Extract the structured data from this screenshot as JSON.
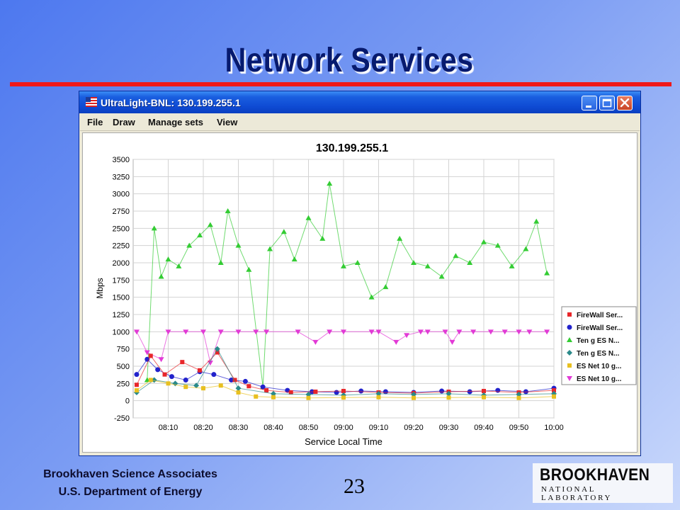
{
  "slide": {
    "title": "Network Services",
    "footer_org_line1": "Brookhaven Science Associates",
    "footer_org_line2": "U.S. Department of Energy",
    "page_number": "23",
    "logo_main": "BROOKHAVEN",
    "logo_sub": "NATIONAL LABORATORY",
    "rule_color": "#f01818"
  },
  "window": {
    "title": "UltraLight-BNL: 130.199.255.1",
    "app_icon": "flag-icon",
    "buttons": [
      "minimize-icon",
      "maximize-icon",
      "close-icon"
    ]
  },
  "menu": [
    "File",
    "Draw",
    "Manage sets",
    "View"
  ],
  "chart_data": {
    "type": "scatter",
    "title": "130.199.255.1",
    "xlabel": "Service Local Time",
    "ylabel": "Mbps",
    "ylim": [
      -250,
      3500
    ],
    "yticks": [
      "3500",
      "3250",
      "3000",
      "2750",
      "2500",
      "2250",
      "2000",
      "1750",
      "1500",
      "1250",
      "1000",
      "750",
      "500",
      "250",
      "0",
      "-250"
    ],
    "xlim": [
      "08:00",
      "10:00"
    ],
    "xticks": [
      "08:10",
      "08:20",
      "08:30",
      "08:40",
      "08:50",
      "09:00",
      "09:10",
      "09:20",
      "09:30",
      "09:40",
      "09:50",
      "10:00"
    ],
    "grid": true,
    "legend_position": "right",
    "legend": [
      "FireWall Ser...",
      "FireWall Ser...",
      "Ten g ES N...",
      "Ten g ES N...",
      "ES Net 10 g...",
      "ES Net 10 g..."
    ],
    "series": [
      {
        "name": "FireWall Ser...",
        "color": "#e8262a",
        "marker": "square",
        "x": [
          "08:01",
          "08:05",
          "08:09",
          "08:14",
          "08:19",
          "08:24",
          "08:29",
          "08:33",
          "08:38",
          "08:45",
          "08:52",
          "09:00",
          "09:10",
          "09:20",
          "09:30",
          "09:40",
          "09:50",
          "10:00"
        ],
        "y": [
          230,
          650,
          380,
          560,
          440,
          700,
          300,
          210,
          150,
          120,
          130,
          140,
          120,
          110,
          130,
          140,
          120,
          150
        ]
      },
      {
        "name": "FireWall Ser...",
        "color": "#2222cc",
        "marker": "circle",
        "x": [
          "08:01",
          "08:04",
          "08:07",
          "08:11",
          "08:15",
          "08:19",
          "08:23",
          "08:28",
          "08:32",
          "08:37",
          "08:44",
          "08:51",
          "08:58",
          "09:05",
          "09:12",
          "09:20",
          "09:28",
          "09:36",
          "09:44",
          "09:52",
          "10:00"
        ],
        "y": [
          380,
          600,
          450,
          350,
          300,
          420,
          380,
          300,
          280,
          200,
          150,
          130,
          120,
          140,
          130,
          120,
          140,
          130,
          150,
          130,
          180
        ]
      },
      {
        "name": "Ten g ES N...",
        "color": "#33cc33",
        "marker": "triangle",
        "x": [
          "08:04",
          "08:06",
          "08:08",
          "08:10",
          "08:13",
          "08:16",
          "08:19",
          "08:22",
          "08:25",
          "08:27",
          "08:30",
          "08:33",
          "08:37",
          "08:39",
          "08:43",
          "08:46",
          "08:50",
          "08:54",
          "08:56",
          "09:00",
          "09:04",
          "09:08",
          "09:12",
          "09:16",
          "09:20",
          "09:24",
          "09:28",
          "09:32",
          "09:36",
          "09:40",
          "09:44",
          "09:48",
          "09:52",
          "09:55",
          "09:58"
        ],
        "y": [
          300,
          2500,
          1800,
          2050,
          1950,
          2250,
          2400,
          2550,
          2000,
          2750,
          2250,
          1900,
          200,
          2200,
          2450,
          2050,
          2650,
          2350,
          3150,
          1950,
          2000,
          1500,
          1650,
          2350,
          2000,
          1950,
          1800,
          2100,
          2000,
          2300,
          2250,
          1950,
          2200,
          2600,
          1850
        ]
      },
      {
        "name": "Ten g ES N...",
        "color": "#2a8a8a",
        "marker": "diamond",
        "x": [
          "08:01",
          "08:06",
          "08:12",
          "08:18",
          "08:24",
          "08:30",
          "08:40",
          "08:50",
          "09:00",
          "09:10",
          "09:20",
          "09:30",
          "09:40",
          "09:50",
          "10:00"
        ],
        "y": [
          120,
          300,
          250,
          220,
          750,
          180,
          100,
          90,
          80,
          100,
          90,
          100,
          80,
          90,
          100
        ]
      },
      {
        "name": "ES Net 10 g...",
        "color": "#e8c020",
        "marker": "square",
        "x": [
          "08:01",
          "08:05",
          "08:10",
          "08:15",
          "08:20",
          "08:25",
          "08:30",
          "08:35",
          "08:40",
          "08:50",
          "09:00",
          "09:10",
          "09:20",
          "09:30",
          "09:40",
          "09:50",
          "10:00"
        ],
        "y": [
          150,
          300,
          250,
          200,
          180,
          220,
          120,
          60,
          50,
          40,
          45,
          50,
          40,
          45,
          50,
          40,
          60
        ]
      },
      {
        "name": "ES Net 10 g...",
        "color": "#e23ad6",
        "marker": "triangle-down",
        "x": [
          "08:01",
          "08:04",
          "08:08",
          "08:10",
          "08:15",
          "08:20",
          "08:22",
          "08:25",
          "08:30",
          "08:35",
          "08:38",
          "08:47",
          "08:52",
          "08:56",
          "09:00",
          "09:08",
          "09:10",
          "09:15",
          "09:18",
          "09:22",
          "09:24",
          "09:29",
          "09:31",
          "09:33",
          "09:37",
          "09:42",
          "09:46",
          "09:50",
          "09:53",
          "09:58"
        ],
        "y": [
          1000,
          700,
          600,
          1000,
          1000,
          1000,
          550,
          1000,
          1000,
          1000,
          1000,
          1000,
          850,
          1000,
          1000,
          1000,
          1000,
          850,
          950,
          1000,
          1000,
          1000,
          850,
          1000,
          1000,
          1000,
          1000,
          1000,
          1000,
          1000
        ]
      }
    ]
  }
}
